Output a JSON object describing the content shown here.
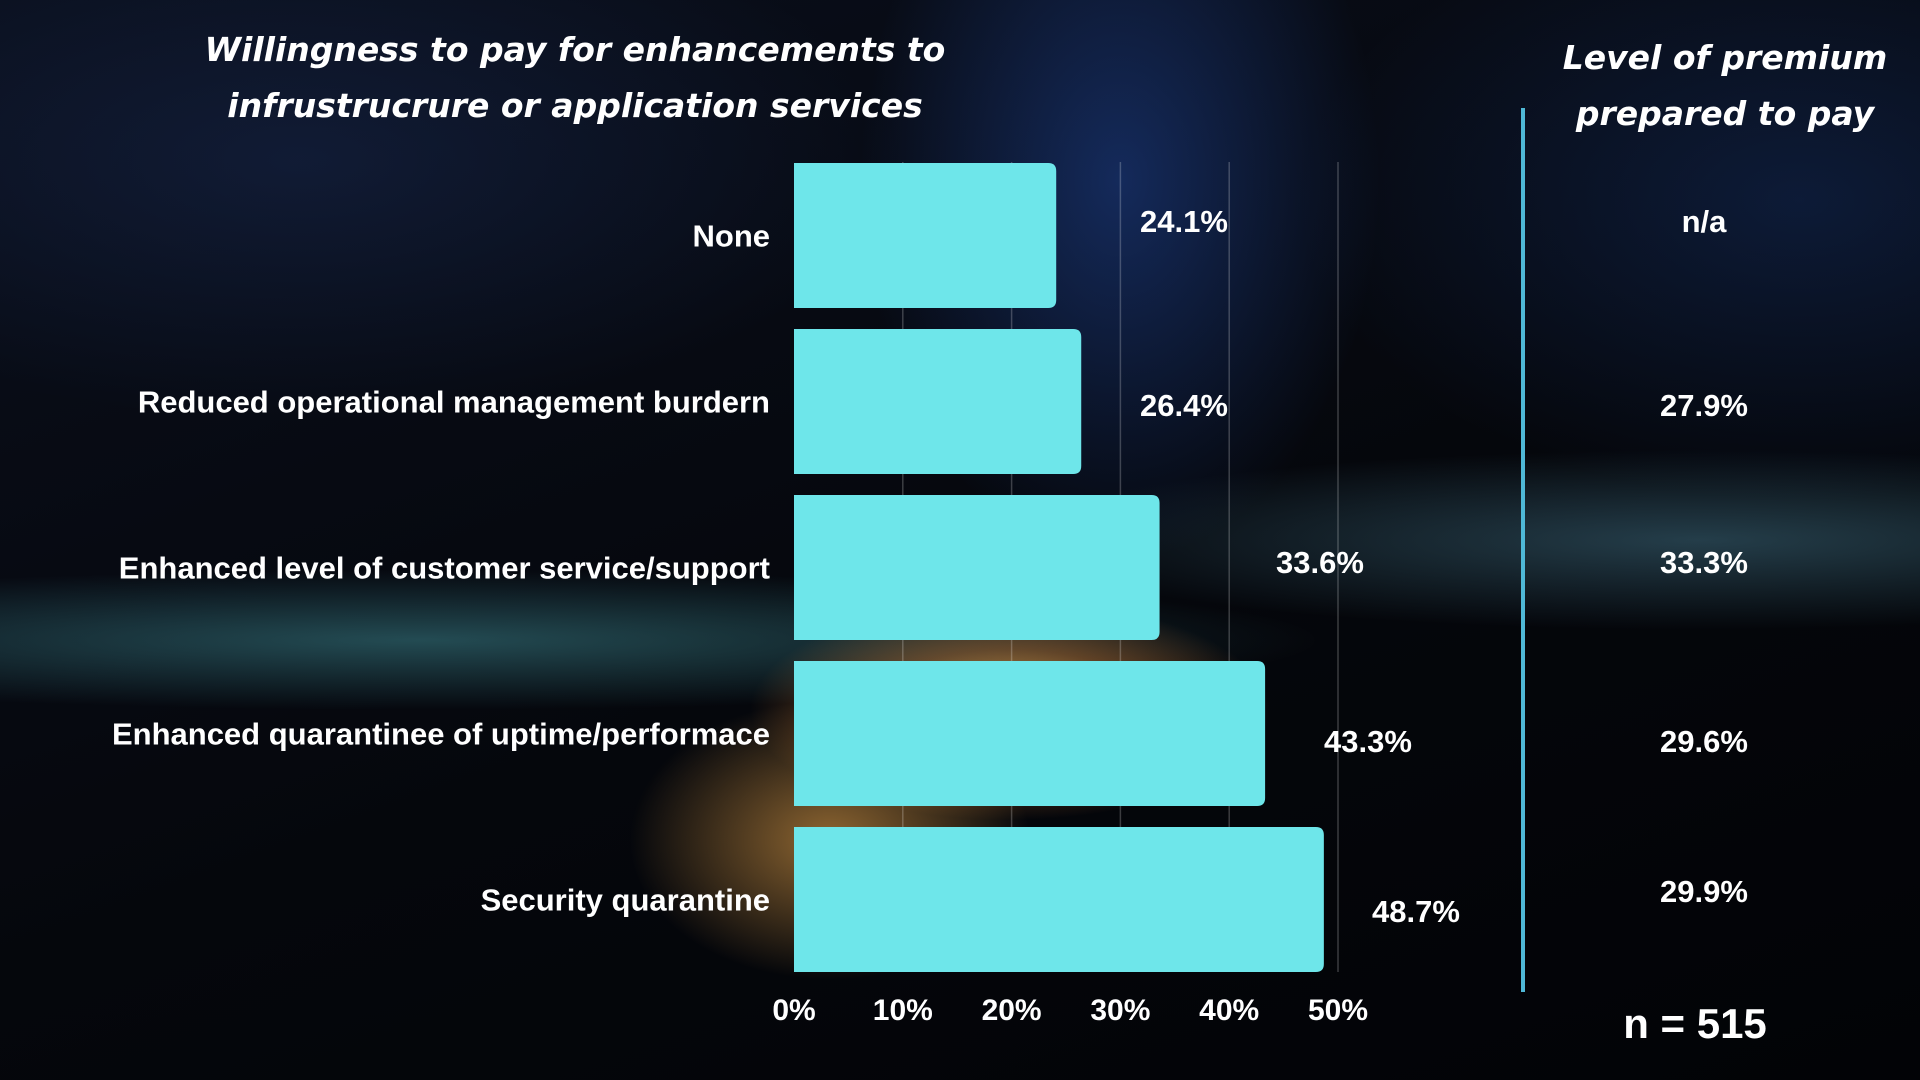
{
  "chart_data": {
    "type": "bar",
    "orientation": "horizontal",
    "title": "Willingness to pay for enhancements to infrustrucrure or application services",
    "categories": [
      "None",
      "Reduced operational management burdern",
      "Enhanced level of customer service/support",
      "Enhanced quarantinee of uptime/performace",
      "Security quarantine"
    ],
    "values": [
      24.1,
      26.4,
      33.6,
      43.3,
      48.7
    ],
    "value_labels": [
      "24.1%",
      "26.4%",
      "33.6%",
      "43.3%",
      "48.7%"
    ],
    "xlim": [
      0,
      50
    ],
    "x_ticks": [
      0,
      10,
      20,
      30,
      40,
      50
    ],
    "x_tick_labels": [
      "0%",
      "10%",
      "20%",
      "30%",
      "40%",
      "50%"
    ],
    "grid": true,
    "bar_color": "#6ee6ea",
    "side_column": {
      "title": "Level of premium prepared to pay",
      "values": [
        "n/a",
        "27.9%",
        "33.3%",
        "29.6%",
        "29.9%"
      ]
    },
    "sample_size_label": "n = 515"
  },
  "colors": {
    "bar": "#6ee6ea",
    "divider": "#4fb8d6",
    "text": "#ffffff"
  }
}
